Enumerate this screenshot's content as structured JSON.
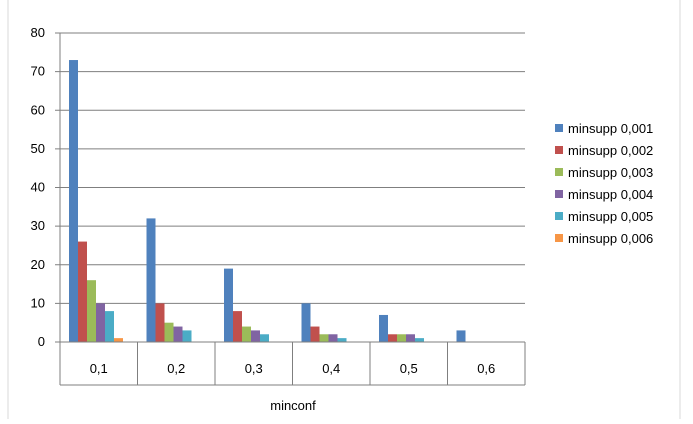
{
  "chart_data": {
    "type": "bar",
    "title": "",
    "xlabel": "minconf",
    "ylabel": "",
    "categories": [
      "0,1",
      "0,2",
      "0,3",
      "0,4",
      "0,5",
      "0,6"
    ],
    "ylim": [
      0,
      80
    ],
    "yticks": [
      0,
      10,
      20,
      30,
      40,
      50,
      60,
      70,
      80
    ],
    "grid": true,
    "legend_position": "right",
    "series": [
      {
        "name": "minsupp 0,001",
        "color": "#4F81BD",
        "values": [
          73,
          32,
          19,
          10,
          7,
          3
        ]
      },
      {
        "name": "minsupp 0,002",
        "color": "#C0504D",
        "values": [
          26,
          10,
          8,
          4,
          2,
          0
        ]
      },
      {
        "name": "minsupp 0,003",
        "color": "#9BBB59",
        "values": [
          16,
          5,
          4,
          2,
          2,
          0
        ]
      },
      {
        "name": "minsupp 0,004",
        "color": "#8064A2",
        "values": [
          10,
          4,
          3,
          2,
          2,
          0
        ]
      },
      {
        "name": "minsupp 0,005",
        "color": "#4BACC6",
        "values": [
          8,
          3,
          2,
          1,
          1,
          0
        ]
      },
      {
        "name": "minsupp 0,006",
        "color": "#F79646",
        "values": [
          1,
          0,
          0,
          0,
          0,
          0
        ]
      }
    ]
  }
}
